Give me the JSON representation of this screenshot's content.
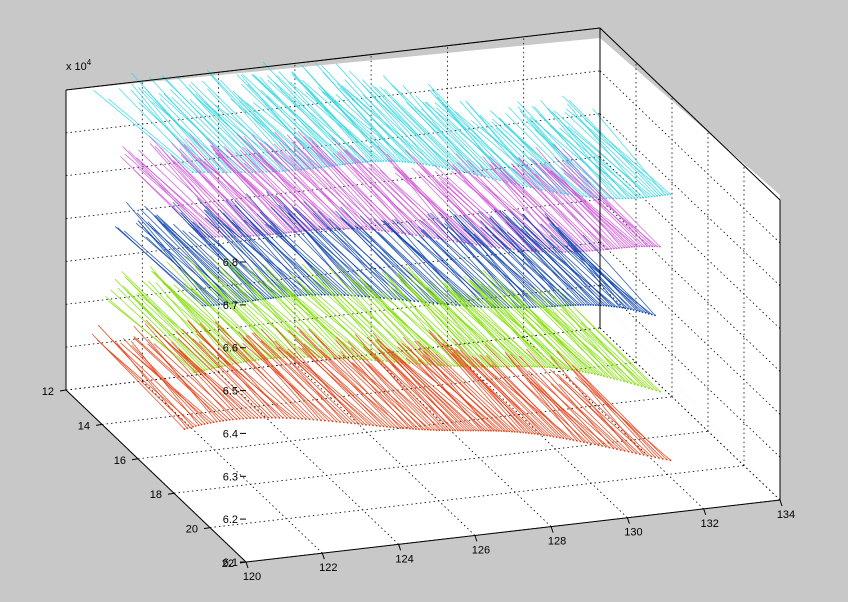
{
  "chart_data": {
    "type": "quiver3",
    "title": "",
    "xlabel": "",
    "ylabel": "",
    "zlabel": "",
    "z_exponent_label": "x 10",
    "z_exponent_power": "4",
    "x_ticks": [
      "120",
      "122",
      "124",
      "126",
      "128",
      "130",
      "132",
      "134"
    ],
    "y_ticks": [
      "12",
      "14",
      "16",
      "18",
      "20",
      "22"
    ],
    "z_ticks": [
      "6.1",
      "6.2",
      "6.3",
      "6.4",
      "6.5",
      "6.6",
      "6.7",
      "6.8"
    ],
    "xlim": [
      120,
      134
    ],
    "ylim": [
      12,
      22
    ],
    "zlim": [
      61000,
      68000
    ],
    "grid": true,
    "box": true,
    "series": [
      {
        "color": "#e8380d",
        "level": 61000
      },
      {
        "color": "#7fe000",
        "level": 62500
      },
      {
        "color": "#0a42b0",
        "level": 64000
      },
      {
        "color": "#d055d8",
        "level": 65500
      },
      {
        "color": "#30d8e0",
        "level": 67000
      }
    ]
  }
}
